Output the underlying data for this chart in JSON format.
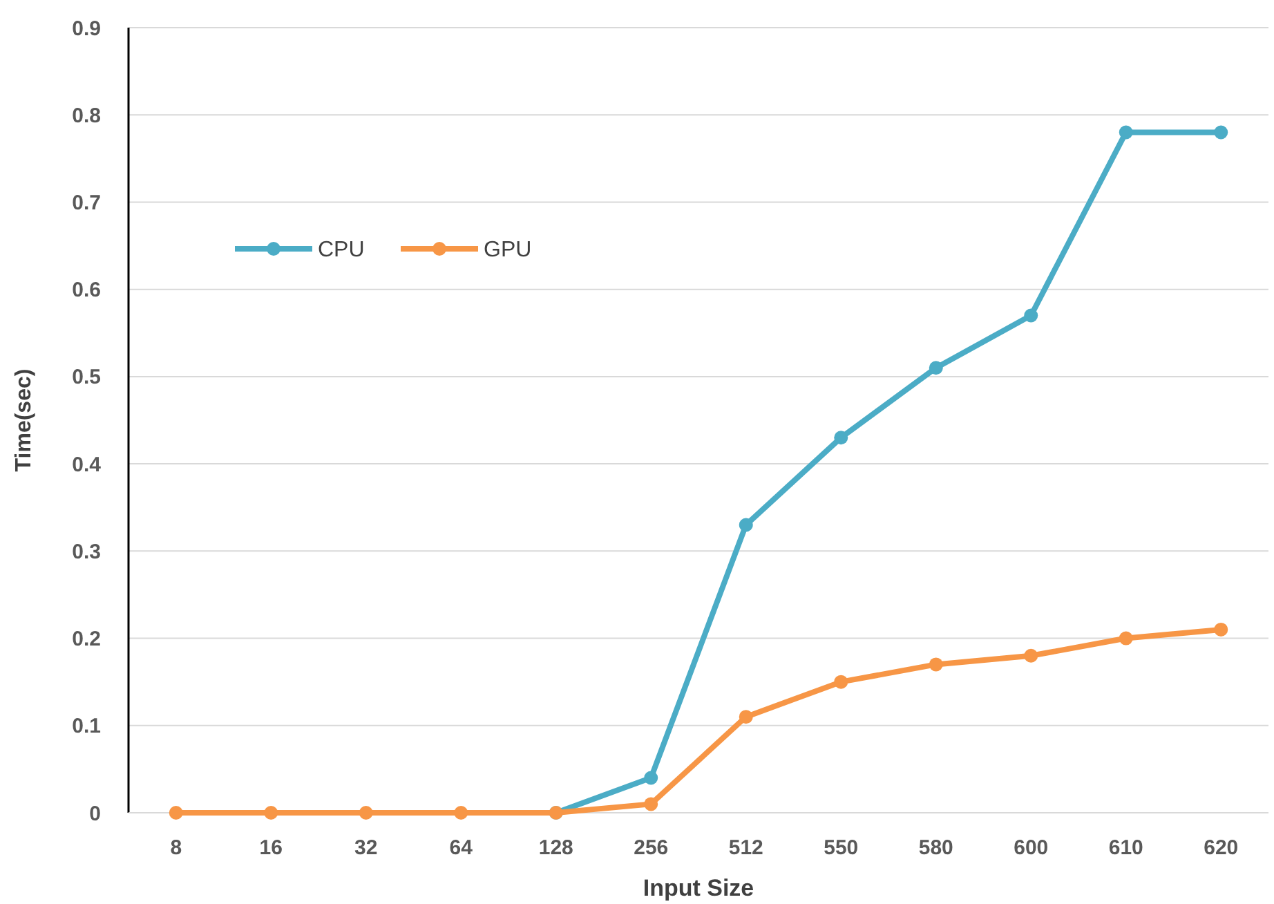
{
  "chart_data": {
    "type": "line",
    "xlabel": "Input Size",
    "ylabel": "Time(sec)",
    "categories": [
      "8",
      "16",
      "32",
      "64",
      "128",
      "256",
      "512",
      "550",
      "580",
      "600",
      "610",
      "620"
    ],
    "series": [
      {
        "name": "CPU",
        "color": "#4bacc6",
        "values": [
          null,
          null,
          null,
          null,
          0,
          0.04,
          0.33,
          0.43,
          0.51,
          0.57,
          0.78,
          0.78
        ]
      },
      {
        "name": "GPU",
        "color": "#f79646",
        "values": [
          0,
          0,
          0,
          0,
          0,
          0.01,
          0.11,
          0.15,
          0.17,
          0.18,
          0.2,
          0.21
        ]
      }
    ],
    "ylim": [
      0,
      0.9
    ],
    "yticks": [
      0,
      0.1,
      0.2,
      0.3,
      0.4,
      0.5,
      0.6,
      0.7,
      0.8,
      0.9
    ],
    "grid": "y",
    "legend": "left",
    "marker": "circle",
    "line_style": "solid"
  }
}
